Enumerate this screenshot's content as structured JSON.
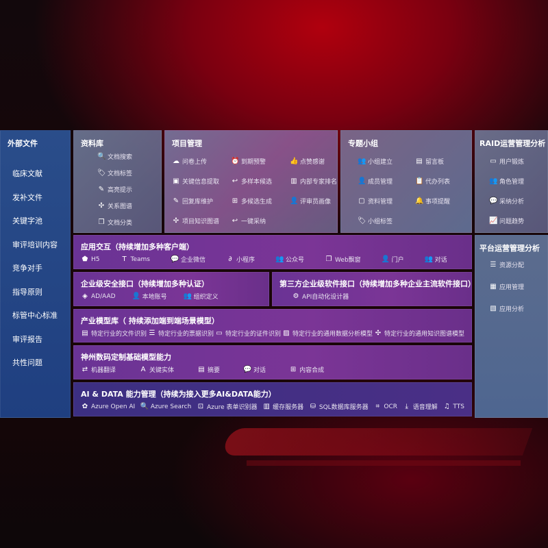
{
  "external": {
    "title": "外部文件",
    "items": [
      "临床文献",
      "发补文件",
      "关键字池",
      "审评培训内容",
      "竞争对手",
      "指导原则",
      "标管中心标准",
      "审评报告",
      "共性问题"
    ]
  },
  "library": {
    "title": "资料库",
    "items": [
      {
        "icon": "doc-search-icon",
        "g": "🔍",
        "label": "文档搜索"
      },
      {
        "icon": "tag-icon",
        "g": "🏷",
        "label": "文档标签"
      },
      {
        "icon": "pen-icon",
        "g": "✎",
        "label": "高亮提示"
      },
      {
        "icon": "graph-icon",
        "g": "✣",
        "label": "关系图谱"
      },
      {
        "icon": "copy-icon",
        "g": "❐",
        "label": "文档分类"
      }
    ]
  },
  "project": {
    "title": "项目管理",
    "items": [
      {
        "icon": "cloud-upload-icon",
        "g": "☁",
        "label": "问卷上传"
      },
      {
        "icon": "alarm-icon",
        "g": "⏰",
        "label": "到期预警"
      },
      {
        "icon": "thumbs-up-icon",
        "g": "👍",
        "label": "点赞感谢"
      },
      {
        "icon": "window-icon",
        "g": "▣",
        "label": "关键信息提取"
      },
      {
        "icon": "reply-icon",
        "g": "↩",
        "label": "多样本候选"
      },
      {
        "icon": "ranking-icon",
        "g": "▥",
        "label": "内部专家排名"
      },
      {
        "icon": "edit-icon",
        "g": "✎",
        "label": "回复库维护"
      },
      {
        "icon": "puzzle-icon",
        "g": "⊞",
        "label": "多候选生成"
      },
      {
        "icon": "user-icon",
        "g": "👤",
        "label": "评审员画像"
      },
      {
        "icon": "graph-icon",
        "g": "✣",
        "label": "项目知识图谱"
      },
      {
        "icon": "reply-icon",
        "g": "↩",
        "label": "一键采纳"
      }
    ]
  },
  "group": {
    "title": "专题小组",
    "items": [
      {
        "icon": "users-icon",
        "g": "👥",
        "label": "小组建立"
      },
      {
        "icon": "bbs-icon",
        "g": "▤",
        "label": "留言板"
      },
      {
        "icon": "add-user-icon",
        "g": "👤",
        "label": "成员管理"
      },
      {
        "icon": "clipboard-icon",
        "g": "📋",
        "label": "代办列表"
      },
      {
        "icon": "folder-icon",
        "g": "▢",
        "label": "资料管理"
      },
      {
        "icon": "bell-icon",
        "g": "🔔",
        "label": "事项提醒"
      },
      {
        "icon": "tag-icon",
        "g": "🏷",
        "label": "小组标签"
      }
    ]
  },
  "raid": {
    "title": "RAID运营管理分析",
    "items": [
      {
        "icon": "id-card-icon",
        "g": "▭",
        "label": "用户锻炼"
      },
      {
        "icon": "users-icon",
        "g": "👥",
        "label": "角色管理"
      },
      {
        "icon": "qa-icon",
        "g": "💬",
        "label": "采纳分析"
      },
      {
        "icon": "trend-icon",
        "g": "📈",
        "label": "问题趋势"
      }
    ]
  },
  "platform": {
    "title": "平台运营管理分析",
    "items": [
      {
        "icon": "list-icon",
        "g": "☰",
        "label": "资源分配"
      },
      {
        "icon": "apps-icon",
        "g": "▦",
        "label": "应用管理"
      },
      {
        "icon": "chart-icon",
        "g": "▧",
        "label": "应用分析"
      }
    ]
  },
  "app": {
    "title": "应用交互（持续增加多种客户端）",
    "items": [
      {
        "icon": "html5-icon",
        "g": "⬟",
        "label": "H5"
      },
      {
        "icon": "teams-icon",
        "g": "T",
        "label": "Teams"
      },
      {
        "icon": "wechat-icon",
        "g": "💬",
        "label": "企业微信"
      },
      {
        "icon": "miniprogram-icon",
        "g": "∂",
        "label": "小程序"
      },
      {
        "icon": "users-icon",
        "g": "👥",
        "label": "公众号"
      },
      {
        "icon": "window-icon",
        "g": "❐",
        "label": "Web飘窗"
      },
      {
        "icon": "portal-icon",
        "g": "👤",
        "label": "门户"
      },
      {
        "icon": "chat-users-icon",
        "g": "👥",
        "label": "对话"
      }
    ]
  },
  "security": {
    "title": "企业级安全接口（持续增加多种认证）",
    "items": [
      {
        "icon": "diamond-icon",
        "g": "◈",
        "label": "AD/AAD"
      },
      {
        "icon": "user-icon",
        "g": "👤",
        "label": "本地账号"
      },
      {
        "icon": "org-icon",
        "g": "👥",
        "label": "组织定义"
      }
    ]
  },
  "third": {
    "title": "第三方企业级软件接口（持续增加多种企业主流软件接口）",
    "items": [
      {
        "icon": "gear-icon",
        "g": "⚙",
        "label": "API自动化设计器"
      }
    ]
  },
  "industry": {
    "title": "产业模型库（ 持续添加端到端场景模型）",
    "items": [
      {
        "icon": "file-icon",
        "g": "▤",
        "label": "特定行业的文件识别"
      },
      {
        "icon": "receipt-icon",
        "g": "☰",
        "label": "特定行业的票据识别"
      },
      {
        "icon": "id-card-icon",
        "g": "▭",
        "label": "特定行业的证件识别"
      },
      {
        "icon": "image-chart-icon",
        "g": "▨",
        "label": "特定行业的通用数据分析模型"
      },
      {
        "icon": "graph-icon",
        "g": "✣",
        "label": "特定行业的通用知识图谱模型"
      }
    ]
  },
  "base": {
    "title": "神州数码定制基础模型能力",
    "items": [
      {
        "icon": "translate-icon",
        "g": "⇄",
        "label": "机器翻译"
      },
      {
        "icon": "entity-icon",
        "g": "A",
        "label": "关键实体"
      },
      {
        "icon": "summary-icon",
        "g": "▤",
        "label": "摘要"
      },
      {
        "icon": "chat-icon",
        "g": "💬",
        "label": "对话"
      },
      {
        "icon": "puzzle-icon",
        "g": "⊞",
        "label": "内容合成"
      }
    ]
  },
  "ai": {
    "title": "AI & DATA 能力管理（持续为接入更多AI&DATA能力）",
    "items": [
      {
        "icon": "openai-icon",
        "g": "✿",
        "label": "Azure Open AI"
      },
      {
        "icon": "search-doc-icon",
        "g": "🔍",
        "label": "Azure Search"
      },
      {
        "icon": "form-icon",
        "g": "⊡",
        "label": "Azure 表单识别器"
      },
      {
        "icon": "cache-icon",
        "g": "▥",
        "label": "缓存服务器"
      },
      {
        "icon": "sql-icon",
        "g": "⛁",
        "label": "SQL数据库服务器"
      },
      {
        "icon": "ocr-icon",
        "g": "⌗",
        "label": "OCR"
      },
      {
        "icon": "speech-icon",
        "g": "⤓",
        "label": "语音理解"
      },
      {
        "icon": "tts-icon",
        "g": "♫",
        "label": "TTS"
      }
    ]
  }
}
